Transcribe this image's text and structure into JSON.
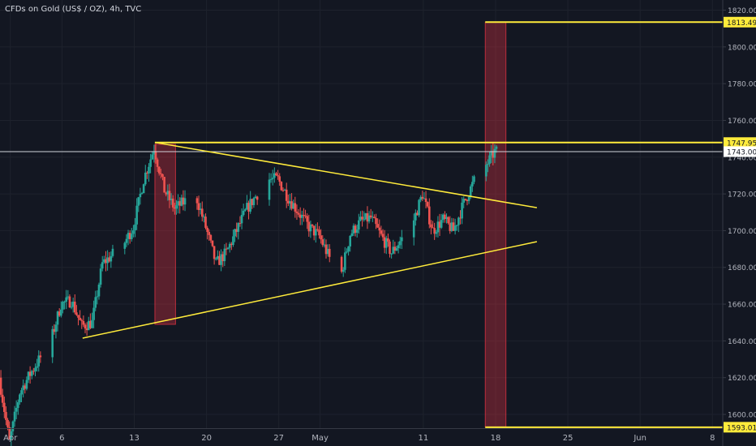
{
  "chart_data": {
    "type": "candlestick",
    "title": "CFDs on Gold (US$ / OZ), 4h, TVC",
    "ylim": [
      1592.5,
      1822
    ],
    "y_ticks": [
      1600,
      1620,
      1640,
      1660,
      1680,
      1700,
      1720,
      1740,
      1760,
      1780,
      1800,
      1820
    ],
    "y_tick_labels": [
      "1600.00",
      "1620.00",
      "1640.00",
      "1660.00",
      "1680.00",
      "1700.00",
      "1720.00",
      "1740.00",
      "1760.00",
      "1780.00",
      "1800.00",
      "1820.00"
    ],
    "x_range": [
      "2020-03-31",
      "2020-06-09"
    ],
    "x_ticks": [
      {
        "date": "2020-04-01",
        "label": "Apr"
      },
      {
        "date": "2020-04-06",
        "label": "6"
      },
      {
        "date": "2020-04-13",
        "label": "13"
      },
      {
        "date": "2020-04-20",
        "label": "20"
      },
      {
        "date": "2020-04-27",
        "label": "27"
      },
      {
        "date": "2020-05-01",
        "label": "May"
      },
      {
        "date": "2020-05-11",
        "label": "11"
      },
      {
        "date": "2020-05-18",
        "label": "18"
      },
      {
        "date": "2020-05-25",
        "label": "25"
      },
      {
        "date": "2020-06-01",
        "label": "Jun"
      },
      {
        "date": "2020-06-08",
        "label": "8"
      }
    ],
    "close_trend": [
      [
        "2020-03-31",
        1620
      ],
      [
        "2020-04-01",
        1585
      ],
      [
        "2020-04-02",
        1612
      ],
      [
        "2020-04-03",
        1622
      ],
      [
        "2020-04-05",
        1640
      ],
      [
        "2020-04-06",
        1660
      ],
      [
        "2020-04-07",
        1662
      ],
      [
        "2020-04-08",
        1648
      ],
      [
        "2020-04-09",
        1650
      ],
      [
        "2020-04-10",
        1682
      ],
      [
        "2020-04-12",
        1692
      ],
      [
        "2020-04-13",
        1702
      ],
      [
        "2020-04-14",
        1728
      ],
      [
        "2020-04-15",
        1745
      ],
      [
        "2020-04-16",
        1722
      ],
      [
        "2020-04-17",
        1712
      ],
      [
        "2020-04-19",
        1720
      ],
      [
        "2020-04-20",
        1702
      ],
      [
        "2020-04-21",
        1682
      ],
      [
        "2020-04-22",
        1688
      ],
      [
        "2020-04-23",
        1700
      ],
      [
        "2020-04-24",
        1712
      ],
      [
        "2020-04-26",
        1728
      ],
      [
        "2020-04-27",
        1728
      ],
      [
        "2020-04-28",
        1718
      ],
      [
        "2020-04-29",
        1710
      ],
      [
        "2020-04-30",
        1702
      ],
      [
        "2020-05-01",
        1697
      ],
      [
        "2020-05-03",
        1673
      ],
      [
        "2020-05-04",
        1698
      ],
      [
        "2020-05-05",
        1705
      ],
      [
        "2020-05-06",
        1707
      ],
      [
        "2020-05-07",
        1697
      ],
      [
        "2020-05-08",
        1688
      ],
      [
        "2020-05-10",
        1703
      ],
      [
        "2020-05-11",
        1720
      ],
      [
        "2020-05-12",
        1700
      ],
      [
        "2020-05-13",
        1706
      ],
      [
        "2020-05-14",
        1700
      ],
      [
        "2020-05-15",
        1715
      ],
      [
        "2020-05-16",
        1727
      ],
      [
        "2020-05-17",
        1734
      ],
      [
        "2020-05-18",
        1743
      ]
    ],
    "candle_colors": {
      "up": "#26a69a",
      "down": "#ef5350"
    },
    "annotations": {
      "horizontal_lines": [
        {
          "label": "1813.49",
          "value": 1813.49,
          "color": "#ffeb3b"
        },
        {
          "label": "1747.95",
          "value": 1747.95,
          "color": "#ffeb3b"
        }
      ],
      "trendlines": [
        {
          "name": "upper-trendline",
          "from": [
            "2020-04-15",
            1748
          ],
          "to": [
            "2020-05-22",
            1712.5
          ],
          "color": "#ffeb3b"
        },
        {
          "name": "lower-trendline",
          "from": [
            "2020-04-08",
            1641.5
          ],
          "to": [
            "2020-05-22",
            1694
          ],
          "color": "#ffeb3b"
        }
      ],
      "rectangles": [
        {
          "name": "flagpole-box",
          "x0": "2020-04-15",
          "x1": "2020-04-17",
          "y0": 1649,
          "y1": 1747,
          "color": "#f23645"
        },
        {
          "name": "target-box",
          "x0": "2020-05-17",
          "x1": "2020-05-19",
          "y0": 1593.01,
          "y1": 1813.49,
          "color": "#f23645"
        }
      ]
    },
    "price_labels": [
      {
        "value": 1813.49,
        "label": "1813.49",
        "bg": "#ffeb3b",
        "fg": "#131722"
      },
      {
        "value": 1747.95,
        "label": "1747.95",
        "bg": "#ffeb3b",
        "fg": "#131722"
      },
      {
        "value": 1743.0,
        "label": "1743.00",
        "bg": "#ffffff",
        "fg": "#131722"
      },
      {
        "value": 1593.01,
        "label": "1593.01",
        "bg": "#ffeb3b",
        "fg": "#131722"
      }
    ],
    "current_price": 1743.0,
    "grid": true,
    "colors": {
      "background": "#131722",
      "grid": "#1e222d",
      "axis_text": "#b2b5be",
      "axis_line": "#363a45"
    }
  }
}
